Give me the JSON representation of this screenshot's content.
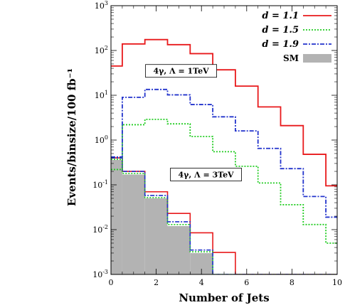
{
  "chart_data": {
    "type": "step-histogram",
    "xlabel": "Number of Jets",
    "ylabel": "Events/binsize/100 fb⁻¹",
    "xlim": [
      0,
      10
    ],
    "ylim": [
      0.001,
      1000
    ],
    "yscale": "log",
    "x_ticks": [
      "0",
      "2",
      "4",
      "6",
      "8",
      "10"
    ],
    "y_ticks": [
      {
        "base": "10",
        "exp": "-3"
      },
      {
        "base": "10",
        "exp": "-2"
      },
      {
        "base": "10",
        "exp": "-1"
      },
      {
        "base": "10",
        "exp": "0"
      },
      {
        "base": "10",
        "exp": "1"
      },
      {
        "base": "10",
        "exp": "2"
      },
      {
        "base": "10",
        "exp": "3"
      }
    ],
    "legend_position": "top-right",
    "bin_edges": [
      -0.5,
      0.5,
      1.5,
      2.5,
      3.5,
      4.5,
      5.5,
      6.5,
      7.5,
      8.5,
      9.5,
      10.5
    ],
    "series": [
      {
        "name": "d = 1.1",
        "color": "#e8191b",
        "style": "solid",
        "values": [
          45,
          140,
          175,
          135,
          85,
          37,
          16,
          5.5,
          2.1,
          0.48,
          0.095
        ]
      },
      {
        "name": "d = 1.5",
        "color": "#22cc22",
        "style": "dotted",
        "values": [
          0.22,
          2.2,
          2.9,
          2.3,
          1.2,
          0.55,
          0.26,
          0.11,
          0.036,
          0.013,
          0.005
        ]
      },
      {
        "name": "d = 1.9",
        "color": "#2233cc",
        "style": "dashdot",
        "values": [
          0.42,
          9.0,
          13.5,
          10.2,
          6.2,
          3.3,
          1.6,
          0.65,
          0.23,
          0.055,
          0.019
        ]
      },
      {
        "name": "SM",
        "color": "#b3b3b3",
        "style": "fill",
        "values": [
          0.36,
          0.17,
          0.05,
          0.012,
          0.003,
          0.0009,
          0.0009,
          0.0009,
          0.0009,
          0.0009,
          0.0009
        ]
      }
    ],
    "low_lambda_curves": [
      {
        "color": "#e8191b",
        "style": "solid",
        "values": [
          0.4,
          0.2,
          0.07,
          0.023,
          0.0085,
          0.0031,
          0.00098,
          0.00095,
          0.00095,
          0.00095,
          0.00095
        ]
      },
      {
        "color": "#22cc22",
        "style": "dotted",
        "values": [
          0.37,
          0.18,
          0.052,
          0.013,
          0.0032,
          0.00097,
          0.00097,
          0.00097,
          0.00097,
          0.00097,
          0.00097
        ]
      },
      {
        "color": "#2233cc",
        "style": "dashdot",
        "values": [
          0.4,
          0.2,
          0.058,
          0.015,
          0.0035,
          0.00098,
          0.00098,
          0.00098,
          0.00098,
          0.00098,
          0.00098
        ]
      }
    ],
    "annotations": [
      {
        "text": "4γ, Λ = 1TeV",
        "x": 3.1,
        "y": 35
      },
      {
        "text": "4γ, Λ = 3TeV",
        "x": 4.2,
        "y": 0.17
      }
    ]
  }
}
